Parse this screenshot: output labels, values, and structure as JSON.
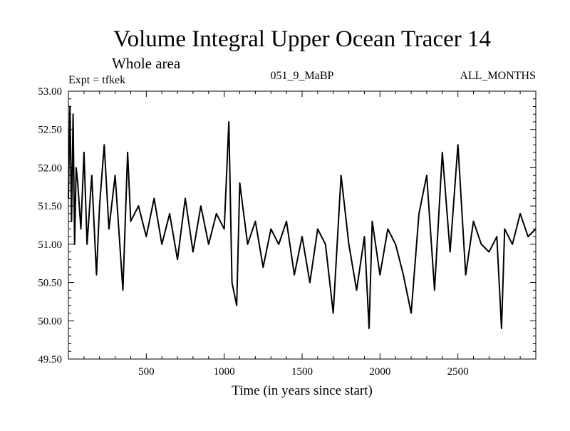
{
  "chart_data": {
    "type": "line",
    "title": "Volume Integral Upper Ocean Tracer 14",
    "subtitle": "Whole area",
    "experiment": "Expt = tfkek",
    "run_label": "051_9_MaBP",
    "months_label": "ALL_MONTHS",
    "xlabel": "Time (in years since start)",
    "ylabel": "",
    "xlim": [
      0,
      3000
    ],
    "ylim": [
      49.5,
      53.0
    ],
    "x_ticks": [
      500,
      1000,
      1500,
      2000,
      2500
    ],
    "x_tick_labels": [
      "500",
      "1000",
      "1500",
      "2000",
      "2500"
    ],
    "y_ticks": [
      49.5,
      50.0,
      50.5,
      51.0,
      51.5,
      52.0,
      52.5,
      53.0
    ],
    "y_tick_labels": [
      "49.50",
      "50.00",
      "50.50",
      "51.00",
      "51.50",
      "52.00",
      "52.50",
      "53.00"
    ],
    "grid": false,
    "line_color": "#000000",
    "series": [
      {
        "x": [
          0,
          10,
          20,
          30,
          40,
          50,
          60,
          80,
          100,
          120,
          150,
          180,
          200,
          230,
          260,
          300,
          350,
          380,
          400,
          450,
          500,
          550,
          600,
          650,
          700,
          750,
          800,
          850,
          900,
          950,
          1000,
          1030,
          1050,
          1080,
          1100,
          1150,
          1200,
          1250,
          1300,
          1350,
          1400,
          1450,
          1500,
          1550,
          1600,
          1650,
          1700,
          1750,
          1800,
          1850,
          1900,
          1930,
          1950,
          2000,
          2050,
          2100,
          2150,
          2200,
          2250,
          2300,
          2350,
          2400,
          2450,
          2500,
          2550,
          2600,
          2650,
          2700,
          2750,
          2780,
          2800,
          2850,
          2900,
          2950,
          3000
        ],
        "y": [
          51.6,
          52.8,
          51.3,
          52.7,
          51.0,
          52.0,
          51.8,
          51.2,
          52.2,
          51.0,
          51.9,
          50.6,
          51.5,
          52.3,
          51.2,
          51.9,
          50.4,
          52.2,
          51.3,
          51.5,
          51.1,
          51.6,
          51.0,
          51.4,
          50.8,
          51.6,
          50.9,
          51.5,
          51.0,
          51.4,
          51.2,
          52.6,
          50.5,
          50.2,
          51.8,
          51.0,
          51.3,
          50.7,
          51.2,
          51.0,
          51.3,
          50.6,
          51.1,
          50.5,
          51.2,
          51.0,
          50.1,
          51.9,
          51.0,
          50.4,
          51.1,
          49.9,
          51.3,
          50.6,
          51.2,
          51.0,
          50.6,
          50.1,
          51.4,
          51.9,
          50.4,
          52.2,
          50.9,
          52.3,
          50.6,
          51.3,
          51.0,
          50.9,
          51.1,
          49.9,
          51.2,
          51.0,
          51.4,
          51.1,
          51.2
        ]
      }
    ]
  }
}
